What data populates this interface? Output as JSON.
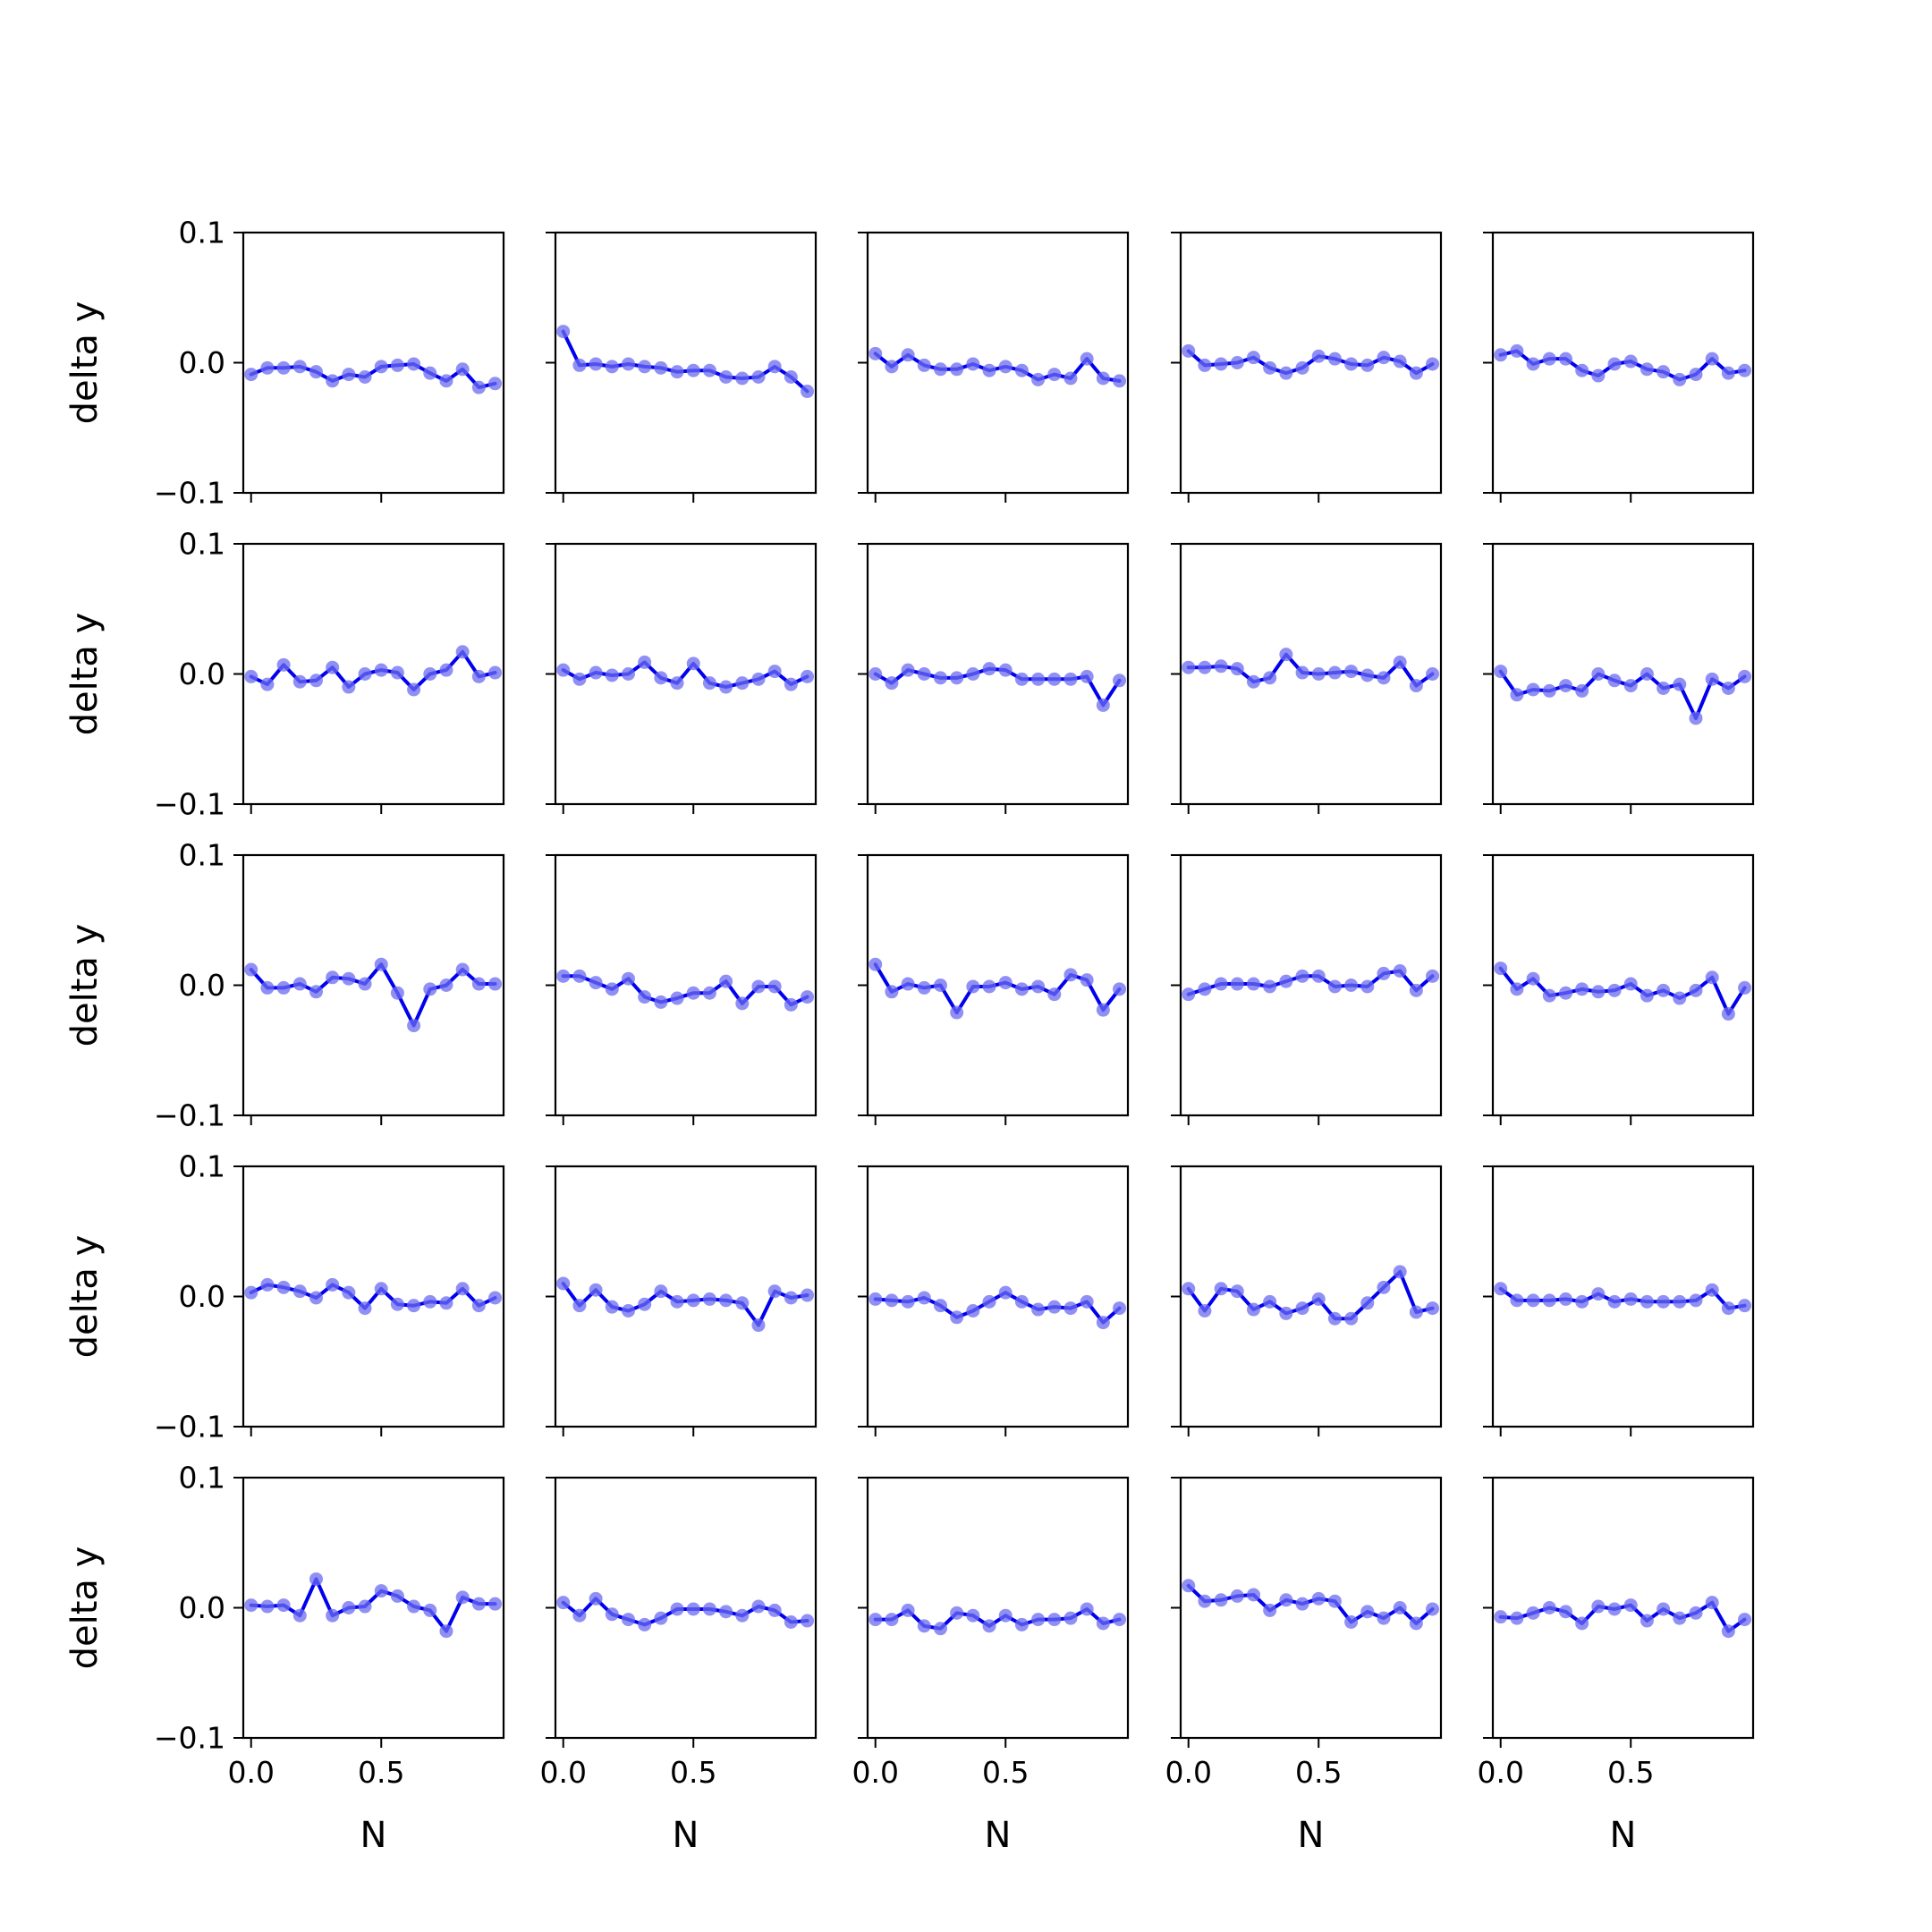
{
  "figure": {
    "ylabel": "delta y",
    "xlabel": "N",
    "x_tick_labels": [
      "0.0",
      "0.5"
    ],
    "y_tick_labels": [
      "−0.1",
      "0.0",
      "0.1"
    ],
    "line_color": "#0000ee",
    "marker_color": "#6b6bf0"
  },
  "chart_data": {
    "type": "line",
    "layout": "5x5 grid of subplots, shared axes",
    "xlim": [
      -0.03,
      0.97
    ],
    "ylim": [
      -0.1,
      0.1
    ],
    "x_ticks": [
      0.0,
      0.5
    ],
    "y_ticks": [
      -0.1,
      0.0,
      0.1
    ],
    "x": [
      0.0,
      0.0625,
      0.125,
      0.1875,
      0.25,
      0.3125,
      0.375,
      0.4375,
      0.5,
      0.5625,
      0.625,
      0.6875,
      0.75,
      0.8125,
      0.875,
      0.9375
    ],
    "panels": [
      {
        "row": 1,
        "col": 1,
        "values": [
          -0.009,
          -0.004,
          -0.004,
          -0.003,
          -0.007,
          -0.014,
          -0.009,
          -0.011,
          -0.003,
          -0.002,
          -0.001,
          -0.008,
          -0.014,
          -0.005,
          -0.019,
          -0.016
        ]
      },
      {
        "row": 1,
        "col": 2,
        "values": [
          0.024,
          -0.002,
          -0.001,
          -0.003,
          -0.001,
          -0.003,
          -0.004,
          -0.007,
          -0.006,
          -0.006,
          -0.011,
          -0.012,
          -0.011,
          -0.003,
          -0.011,
          -0.022
        ]
      },
      {
        "row": 1,
        "col": 3,
        "values": [
          0.007,
          -0.003,
          0.006,
          -0.002,
          -0.005,
          -0.005,
          -0.001,
          -0.006,
          -0.003,
          -0.006,
          -0.013,
          -0.009,
          -0.012,
          0.003,
          -0.012,
          -0.014
        ]
      },
      {
        "row": 1,
        "col": 4,
        "values": [
          0.009,
          -0.002,
          -0.001,
          0.0,
          0.004,
          -0.004,
          -0.008,
          -0.004,
          0.005,
          0.003,
          -0.001,
          -0.002,
          0.004,
          0.001,
          -0.008,
          -0.001
        ]
      },
      {
        "row": 1,
        "col": 5,
        "values": [
          0.006,
          0.009,
          -0.001,
          0.003,
          0.003,
          -0.006,
          -0.01,
          -0.001,
          0.001,
          -0.005,
          -0.007,
          -0.013,
          -0.009,
          0.003,
          -0.008,
          -0.006
        ]
      },
      {
        "row": 2,
        "col": 1,
        "values": [
          -0.002,
          -0.008,
          0.007,
          -0.006,
          -0.005,
          0.005,
          -0.01,
          0.0,
          0.003,
          0.001,
          -0.012,
          0.0,
          0.003,
          0.017,
          -0.002,
          0.001
        ]
      },
      {
        "row": 2,
        "col": 2,
        "values": [
          0.003,
          -0.004,
          0.001,
          -0.001,
          0.0,
          0.009,
          -0.003,
          -0.007,
          0.008,
          -0.007,
          -0.01,
          -0.007,
          -0.004,
          0.002,
          -0.008,
          -0.002
        ]
      },
      {
        "row": 2,
        "col": 3,
        "values": [
          0.0,
          -0.007,
          0.003,
          0.0,
          -0.003,
          -0.003,
          0.0,
          0.004,
          0.003,
          -0.004,
          -0.004,
          -0.004,
          -0.004,
          -0.002,
          -0.024,
          -0.005
        ]
      },
      {
        "row": 2,
        "col": 4,
        "values": [
          0.005,
          0.005,
          0.006,
          0.004,
          -0.006,
          -0.003,
          0.015,
          0.001,
          0.0,
          0.001,
          0.002,
          -0.001,
          -0.003,
          0.009,
          -0.009,
          0.0
        ]
      },
      {
        "row": 2,
        "col": 5,
        "values": [
          0.002,
          -0.016,
          -0.012,
          -0.013,
          -0.009,
          -0.013,
          0.0,
          -0.005,
          -0.009,
          0.0,
          -0.011,
          -0.008,
          -0.034,
          -0.004,
          -0.011,
          -0.002
        ]
      },
      {
        "row": 3,
        "col": 1,
        "values": [
          0.012,
          -0.002,
          -0.002,
          0.001,
          -0.005,
          0.006,
          0.005,
          0.001,
          0.016,
          -0.006,
          -0.031,
          -0.003,
          0.0,
          0.012,
          0.001,
          0.001
        ]
      },
      {
        "row": 3,
        "col": 2,
        "values": [
          0.007,
          0.007,
          0.002,
          -0.003,
          0.005,
          -0.009,
          -0.013,
          -0.01,
          -0.006,
          -0.006,
          0.003,
          -0.014,
          -0.001,
          -0.001,
          -0.015,
          -0.009
        ]
      },
      {
        "row": 3,
        "col": 3,
        "values": [
          0.016,
          -0.005,
          0.001,
          -0.002,
          0.0,
          -0.021,
          -0.001,
          -0.001,
          0.002,
          -0.003,
          -0.001,
          -0.007,
          0.008,
          0.004,
          -0.019,
          -0.003
        ]
      },
      {
        "row": 3,
        "col": 4,
        "values": [
          -0.007,
          -0.003,
          0.001,
          0.001,
          0.001,
          -0.001,
          0.003,
          0.007,
          0.007,
          -0.001,
          0.0,
          -0.001,
          0.009,
          0.011,
          -0.004,
          0.007
        ]
      },
      {
        "row": 3,
        "col": 5,
        "values": [
          0.013,
          -0.003,
          0.005,
          -0.008,
          -0.006,
          -0.003,
          -0.005,
          -0.004,
          0.001,
          -0.008,
          -0.004,
          -0.01,
          -0.004,
          0.006,
          -0.022,
          -0.002
        ]
      },
      {
        "row": 4,
        "col": 1,
        "values": [
          0.003,
          0.009,
          0.007,
          0.004,
          -0.001,
          0.009,
          0.003,
          -0.009,
          0.006,
          -0.006,
          -0.007,
          -0.004,
          -0.005,
          0.006,
          -0.007,
          -0.001
        ]
      },
      {
        "row": 4,
        "col": 2,
        "values": [
          0.01,
          -0.007,
          0.005,
          -0.008,
          -0.011,
          -0.006,
          0.004,
          -0.004,
          -0.003,
          -0.002,
          -0.003,
          -0.005,
          -0.022,
          0.004,
          -0.001,
          0.001
        ]
      },
      {
        "row": 4,
        "col": 3,
        "values": [
          -0.002,
          -0.003,
          -0.004,
          -0.001,
          -0.007,
          -0.016,
          -0.011,
          -0.004,
          0.003,
          -0.004,
          -0.01,
          -0.008,
          -0.009,
          -0.004,
          -0.02,
          -0.009
        ]
      },
      {
        "row": 4,
        "col": 4,
        "values": [
          0.006,
          -0.011,
          0.006,
          0.004,
          -0.01,
          -0.004,
          -0.013,
          -0.009,
          -0.002,
          -0.017,
          -0.017,
          -0.005,
          0.007,
          0.019,
          -0.012,
          -0.009
        ]
      },
      {
        "row": 4,
        "col": 5,
        "values": [
          0.006,
          -0.003,
          -0.003,
          -0.003,
          -0.002,
          -0.004,
          0.002,
          -0.004,
          -0.002,
          -0.004,
          -0.004,
          -0.004,
          -0.003,
          0.005,
          -0.009,
          -0.007
        ]
      },
      {
        "row": 5,
        "col": 1,
        "values": [
          0.002,
          0.001,
          0.002,
          -0.006,
          0.022,
          -0.006,
          0.0,
          0.001,
          0.013,
          0.009,
          0.001,
          -0.002,
          -0.018,
          0.008,
          0.003,
          0.003
        ]
      },
      {
        "row": 5,
        "col": 2,
        "values": [
          0.004,
          -0.006,
          0.007,
          -0.005,
          -0.009,
          -0.013,
          -0.008,
          -0.001,
          -0.001,
          -0.001,
          -0.003,
          -0.006,
          0.001,
          -0.002,
          -0.011,
          -0.01
        ]
      },
      {
        "row": 5,
        "col": 3,
        "values": [
          -0.009,
          -0.009,
          -0.002,
          -0.014,
          -0.016,
          -0.004,
          -0.006,
          -0.014,
          -0.006,
          -0.013,
          -0.009,
          -0.009,
          -0.008,
          -0.001,
          -0.012,
          -0.009
        ]
      },
      {
        "row": 5,
        "col": 4,
        "values": [
          0.017,
          0.005,
          0.006,
          0.009,
          0.01,
          -0.002,
          0.006,
          0.003,
          0.007,
          0.005,
          -0.011,
          -0.003,
          -0.008,
          0.0,
          -0.012,
          -0.001
        ]
      },
      {
        "row": 5,
        "col": 5,
        "values": [
          -0.007,
          -0.008,
          -0.004,
          0.0,
          -0.003,
          -0.012,
          0.001,
          -0.001,
          0.002,
          -0.01,
          -0.001,
          -0.008,
          -0.004,
          0.004,
          -0.018,
          -0.009
        ]
      }
    ]
  }
}
